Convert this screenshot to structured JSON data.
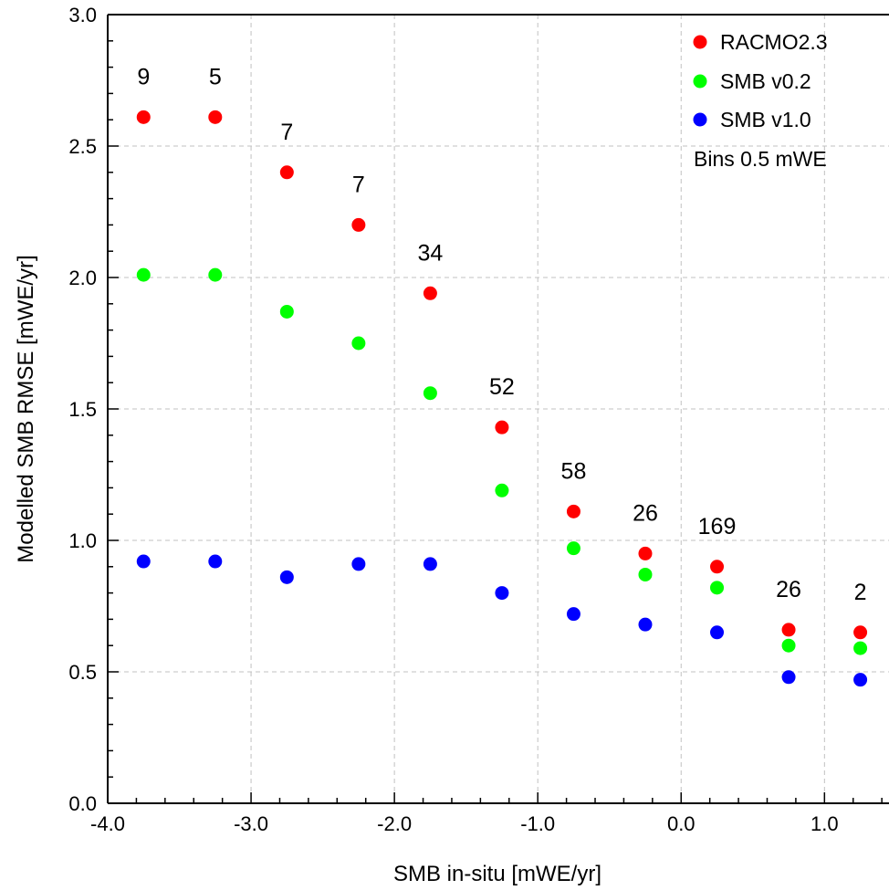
{
  "chart_data": {
    "type": "scatter",
    "xlabel": "SMB in-situ [mWE/yr]",
    "ylabel": "Modelled SMB RMSE [mWE/yr]",
    "xlim": [
      -4.0,
      1.45
    ],
    "ylim": [
      0.0,
      3.0
    ],
    "x_ticks": [
      -4.0,
      -3.0,
      -2.0,
      -1.0,
      0.0,
      1.0
    ],
    "x_tick_labels": [
      "-4.0",
      "-3.0",
      "-2.0",
      "-1.0",
      "0.0",
      "1.0"
    ],
    "y_ticks": [
      0.0,
      0.5,
      1.0,
      1.5,
      2.0,
      2.5,
      3.0
    ],
    "y_tick_labels": [
      "0.0",
      "0.5",
      "1.0",
      "1.5",
      "2.0",
      "2.5",
      "3.0"
    ],
    "grid": true,
    "legend_position": "top-right",
    "legend_note": "Bins 0.5 mWE",
    "x": [
      -3.75,
      -3.25,
      -2.75,
      -2.25,
      -1.75,
      -1.25,
      -0.75,
      -0.25,
      0.25,
      0.75,
      1.25
    ],
    "counts": [
      "9",
      "5",
      "7",
      "7",
      "34",
      "52",
      "58",
      "26",
      "169",
      "26",
      "2"
    ],
    "series": [
      {
        "name": "RACMO2.3",
        "color": "#ff0000",
        "values": [
          2.61,
          2.61,
          2.4,
          2.2,
          1.94,
          1.43,
          1.11,
          0.95,
          0.9,
          0.66,
          0.65
        ]
      },
      {
        "name": "SMB v0.2",
        "color": "#00ff00",
        "values": [
          2.01,
          2.01,
          1.87,
          1.75,
          1.56,
          1.19,
          0.97,
          0.87,
          0.82,
          0.6,
          0.59
        ]
      },
      {
        "name": "SMB v1.0",
        "color": "#0000ff",
        "values": [
          0.92,
          0.92,
          0.86,
          0.91,
          0.91,
          0.8,
          0.72,
          0.68,
          0.65,
          0.48,
          0.47
        ]
      }
    ]
  }
}
